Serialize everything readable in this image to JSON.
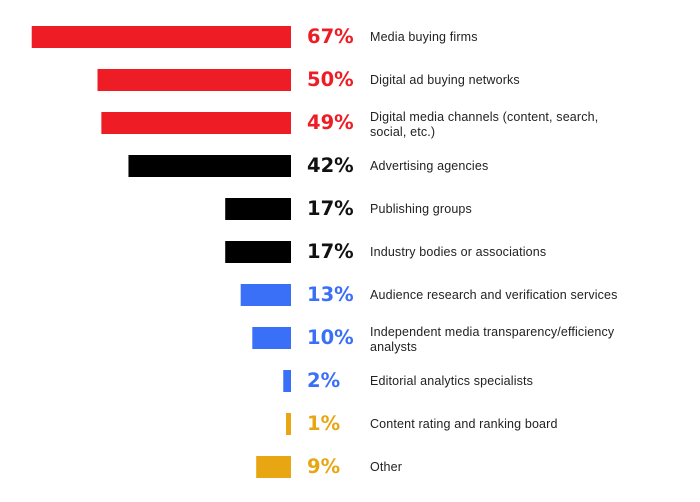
{
  "chart_data": {
    "type": "bar",
    "orientation": "horizontal",
    "categories": [
      "Media buying firms",
      "Digital ad buying networks",
      "Digital media channels (content, search, social, etc.)",
      "Advertising agencies",
      "Publishing groups",
      "Industry bodies or associations",
      "Audience research and verification services",
      "Independent media transparency/efficiency analysts",
      "Editorial analytics specialists",
      "Content rating and ranking board",
      "Other"
    ],
    "label_lines": [
      [
        "Media buying firms"
      ],
      [
        "Digital ad buying networks"
      ],
      [
        "Digital media channels (content, search,",
        "social, etc.)"
      ],
      [
        "Advertising agencies"
      ],
      [
        "Publishing groups"
      ],
      [
        "Industry bodies or associations"
      ],
      [
        "Audience research and verification services"
      ],
      [
        "Independent media transparency/efficiency",
        "analysts"
      ],
      [
        "Editorial analytics specialists"
      ],
      [
        "Content rating and ranking board"
      ],
      [
        "Other"
      ]
    ],
    "values": [
      67,
      50,
      49,
      42,
      17,
      17,
      13,
      10,
      2,
      1,
      9
    ],
    "value_labels": [
      "67%",
      "50%",
      "49%",
      "42%",
      "17%",
      "17%",
      "13%",
      "10%",
      "2%",
      "1%",
      "9%"
    ],
    "colors": [
      "#ee1c25",
      "#ee1c25",
      "#ee1c25",
      "#000000",
      "#000000",
      "#000000",
      "#3a6ff7",
      "#3a6ff7",
      "#3a6ff7",
      "#e8a712",
      "#e8a712"
    ],
    "title": "",
    "xlabel": "",
    "ylabel": "",
    "xlim": [
      0,
      67
    ],
    "grid": false,
    "legend": "none"
  }
}
